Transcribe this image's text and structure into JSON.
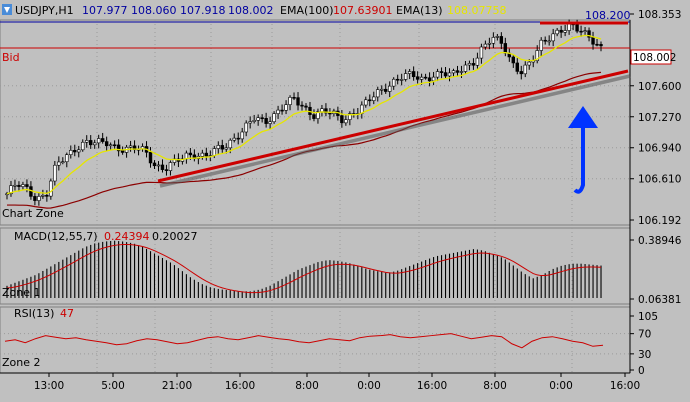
{
  "header": {
    "symbol": "USDJPY,H1",
    "open": "107.977",
    "high": "108.060",
    "low": "107.918",
    "close": "108.002",
    "ema100_label": "EMA(100)",
    "ema100_value": "107.63901",
    "ema13_label": "EMA(13)",
    "ema13_value": "108.07758"
  },
  "price_panel": {
    "bid_label": "Bid",
    "bid_price": "108.002",
    "zone_label": "Chart Zone",
    "top_level_label": "108.200"
  },
  "macd_panel": {
    "label": "MACD(12,55,7)",
    "value1": "0.24394",
    "value2": "0.20027",
    "zone_label": "Zone 1"
  },
  "rsi_panel": {
    "label": "RSI(13)",
    "value": "47",
    "zone_label": "Zone 2"
  },
  "colors": {
    "background": "#c0c0c0",
    "bull_candle": "#ffffff",
    "bear_candle": "#000000",
    "ema13": "#e6e600",
    "ema100": "#8b0000",
    "trendline": "#cc0000",
    "arrow": "#0033ff",
    "macd_signal": "#cc0000",
    "rsi_line": "#cc0000"
  },
  "chart_data": [
    {
      "type": "candlestick",
      "title": "USDJPY,H1",
      "x_ticks": [
        "13:00",
        "5:00",
        "21:00",
        "16:00",
        "8:00",
        "0:00",
        "16:00",
        "8:00",
        "0:00",
        "16:00"
      ],
      "y_ticks": [
        108.353,
        108.002,
        107.6,
        107.27,
        106.94,
        106.61,
        106.192
      ],
      "ylim": [
        106.192,
        108.353
      ],
      "annotations": [
        "trendline support",
        "up arrow",
        "horizontal line 108.200"
      ],
      "series": [
        {
          "name": "EMA(13)",
          "last": 108.07758
        },
        {
          "name": "EMA(100)",
          "last": 107.63901
        }
      ],
      "close_path": [
        [
          0,
          106.45
        ],
        [
          10,
          106.55
        ],
        [
          20,
          106.5
        ],
        [
          30,
          106.4
        ],
        [
          40,
          106.45
        ],
        [
          50,
          106.75
        ],
        [
          60,
          106.85
        ],
        [
          70,
          106.95
        ],
        [
          80,
          107.0
        ],
        [
          90,
          106.98
        ],
        [
          100,
          107.0
        ],
        [
          110,
          106.95
        ],
        [
          120,
          106.92
        ],
        [
          130,
          106.93
        ],
        [
          140,
          106.9
        ],
        [
          150,
          106.75
        ],
        [
          160,
          106.72
        ],
        [
          170,
          106.78
        ],
        [
          180,
          106.85
        ],
        [
          190,
          106.88
        ],
        [
          200,
          106.85
        ],
        [
          210,
          106.9
        ],
        [
          220,
          106.95
        ],
        [
          230,
          107.05
        ],
        [
          240,
          107.15
        ],
        [
          250,
          107.25
        ],
        [
          260,
          107.2
        ],
        [
          270,
          107.3
        ],
        [
          280,
          107.4
        ],
        [
          290,
          107.45
        ],
        [
          300,
          107.35
        ],
        [
          310,
          107.3
        ],
        [
          320,
          107.35
        ],
        [
          330,
          107.28
        ],
        [
          340,
          107.22
        ],
        [
          350,
          107.32
        ],
        [
          360,
          107.4
        ],
        [
          370,
          107.48
        ],
        [
          380,
          107.55
        ],
        [
          390,
          107.65
        ],
        [
          400,
          107.72
        ],
        [
          410,
          107.7
        ],
        [
          420,
          107.65
        ],
        [
          430,
          107.72
        ],
        [
          440,
          107.75
        ],
        [
          450,
          107.7
        ],
        [
          460,
          107.78
        ],
        [
          470,
          107.85
        ],
        [
          480,
          108.0
        ],
        [
          490,
          108.1
        ],
        [
          500,
          108.05
        ],
        [
          510,
          107.85
        ],
        [
          520,
          107.75
        ],
        [
          530,
          107.85
        ],
        [
          540,
          108.05
        ],
        [
          550,
          108.15
        ],
        [
          560,
          108.2
        ],
        [
          570,
          108.22
        ],
        [
          580,
          108.18
        ],
        [
          590,
          108.12
        ],
        [
          600,
          108.0
        ]
      ]
    },
    {
      "type": "bar",
      "title": "MACD(12,55,7)",
      "y_ticks": [
        0.38946,
        0.06381
      ],
      "ylim": [
        0.06381,
        0.38946
      ],
      "series": [
        {
          "name": "MACD",
          "last": 0.24394
        },
        {
          "name": "Signal",
          "last": 0.20027
        }
      ],
      "values": [
        0.13,
        0.15,
        0.17,
        0.19,
        0.22,
        0.25,
        0.28,
        0.31,
        0.34,
        0.36,
        0.37,
        0.375,
        0.37,
        0.36,
        0.34,
        0.31,
        0.28,
        0.25,
        0.21,
        0.17,
        0.14,
        0.12,
        0.11,
        0.105,
        0.1,
        0.1,
        0.11,
        0.13,
        0.16,
        0.19,
        0.22,
        0.24,
        0.26,
        0.27,
        0.265,
        0.255,
        0.24,
        0.22,
        0.21,
        0.2,
        0.21,
        0.23,
        0.25,
        0.27,
        0.29,
        0.3,
        0.31,
        0.32,
        0.33,
        0.32,
        0.3,
        0.28,
        0.24,
        0.2,
        0.17,
        0.19,
        0.22,
        0.24,
        0.25,
        0.25,
        0.245,
        0.24
      ]
    },
    {
      "type": "line",
      "title": "RSI(13)",
      "y_ticks": [
        105,
        70,
        30,
        0
      ],
      "ylim": [
        0,
        105
      ],
      "series": [
        {
          "name": "RSI(13)",
          "last": 47
        }
      ],
      "values": [
        55,
        58,
        52,
        60,
        66,
        63,
        60,
        62,
        58,
        55,
        52,
        48,
        50,
        56,
        60,
        58,
        54,
        50,
        52,
        57,
        62,
        64,
        60,
        58,
        62,
        66,
        63,
        60,
        58,
        54,
        52,
        56,
        60,
        58,
        56,
        62,
        65,
        66,
        68,
        64,
        62,
        64,
        66,
        68,
        70,
        65,
        60,
        63,
        66,
        64,
        50,
        42,
        55,
        62,
        64,
        60,
        55,
        52,
        45,
        47
      ]
    }
  ]
}
